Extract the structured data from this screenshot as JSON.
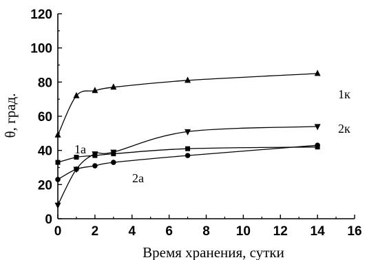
{
  "chart_data": {
    "type": "line",
    "xlabel": "Время хранения, сутки",
    "ylabel": "θ, град.",
    "xlim": [
      0,
      16
    ],
    "ylim": [
      0,
      120
    ],
    "xticks": [
      "0",
      "2",
      "4",
      "6",
      "8",
      "10",
      "12",
      "14",
      "16"
    ],
    "yticks": [
      "0",
      "20",
      "40",
      "60",
      "80",
      "100",
      "120"
    ],
    "grid": false,
    "series": [
      {
        "name": "1к",
        "marker": "triangle-up",
        "x": [
          0,
          1,
          2,
          3,
          7,
          14
        ],
        "y": [
          49,
          72,
          75,
          77,
          81,
          85
        ]
      },
      {
        "name": "2к",
        "marker": "triangle-down",
        "x": [
          0,
          1,
          2,
          3,
          7,
          14
        ],
        "y": [
          8,
          29,
          38,
          39,
          51,
          54
        ]
      },
      {
        "name": "1а",
        "marker": "square",
        "x": [
          0,
          1,
          2,
          3,
          7,
          14
        ],
        "y": [
          33,
          36,
          37,
          38,
          41,
          42
        ]
      },
      {
        "name": "2а",
        "marker": "circle",
        "x": [
          0,
          1,
          2,
          3,
          7,
          14
        ],
        "y": [
          23,
          29,
          31,
          33,
          37,
          43
        ]
      }
    ]
  }
}
